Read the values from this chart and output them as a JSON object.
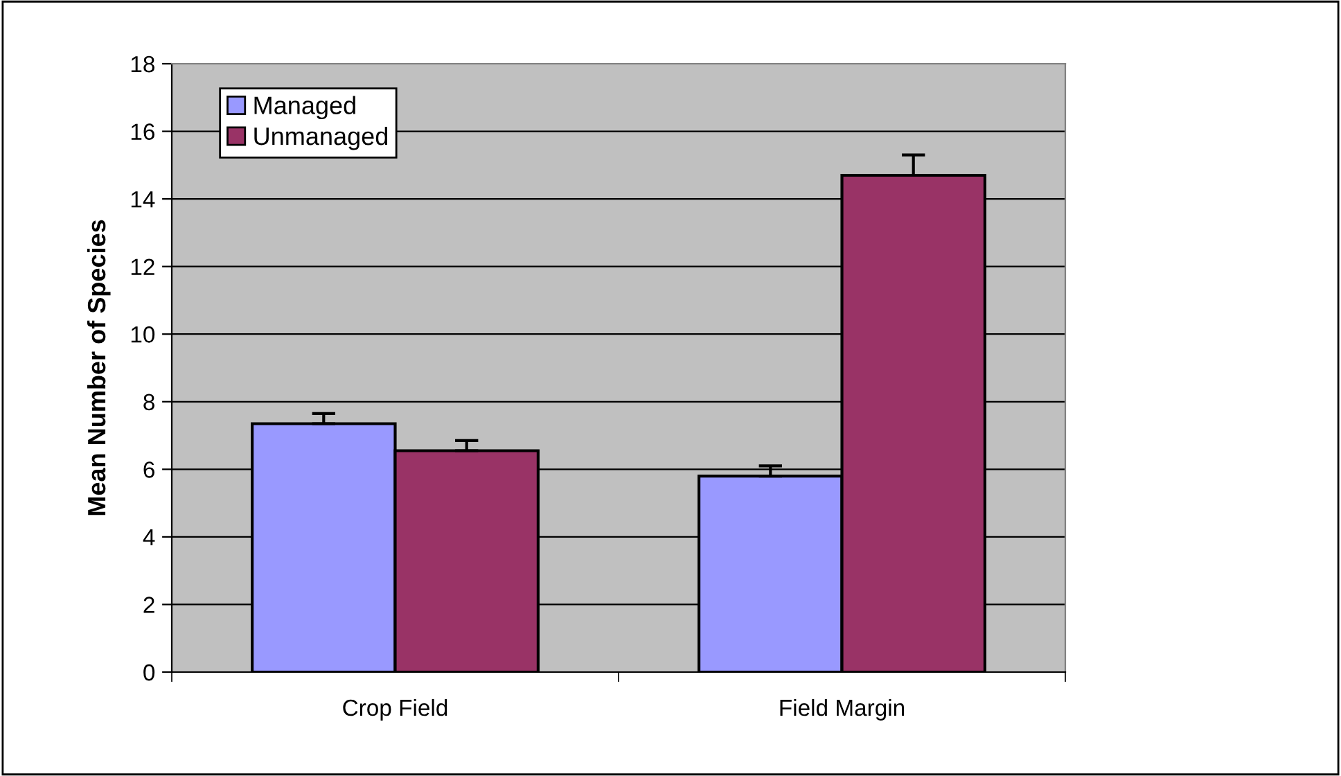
{
  "chart_data": {
    "type": "bar",
    "ylabel": "Mean Number of Species",
    "categories": [
      "Crop Field",
      "Field Margin"
    ],
    "series": [
      {
        "name": "Managed",
        "color": "#9999ff",
        "values": [
          7.35,
          5.8
        ],
        "errors": [
          0.3,
          0.3
        ]
      },
      {
        "name": "Unmanaged",
        "color": "#993366",
        "values": [
          6.55,
          14.7
        ],
        "errors": [
          0.3,
          0.6
        ]
      }
    ],
    "ylim": [
      0,
      18
    ],
    "yticks": [
      0,
      2,
      4,
      6,
      8,
      10,
      12,
      14,
      16,
      18
    ],
    "grid": "y",
    "legend": "top left"
  }
}
